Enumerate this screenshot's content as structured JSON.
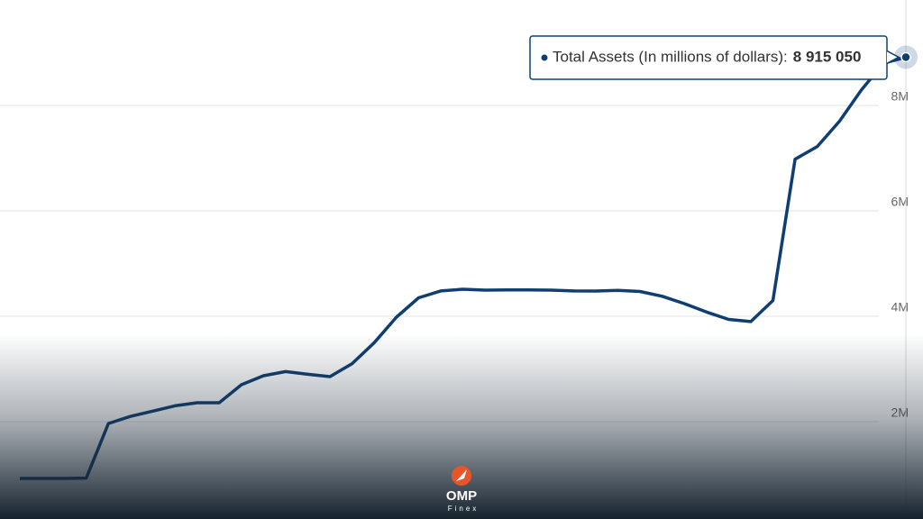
{
  "chart_data": {
    "type": "line",
    "series": [
      {
        "name": "Total Assets (In millions of dollars)",
        "color": "#0f3e72",
        "values": [
          923000,
          923000,
          923000,
          930000,
          1966000,
          2100000,
          2200000,
          2300000,
          2359000,
          2359000,
          2700000,
          2872000,
          2950000,
          2900000,
          2855000,
          3100000,
          3500000,
          3983000,
          4350000,
          4480000,
          4513000,
          4496000,
          4500000,
          4500000,
          4496000,
          4480000,
          4479000,
          4490000,
          4470000,
          4380000,
          4239000,
          4080000,
          3940000,
          3900000,
          4300000,
          6980000,
          7220000,
          7700000,
          8300000,
          8803000,
          8915050
        ]
      }
    ],
    "ylim": [
      0,
      10000000
    ],
    "yticks": [
      {
        "value": 2000000,
        "label": "2M"
      },
      {
        "value": 4000000,
        "label": "4M"
      },
      {
        "value": 6000000,
        "label": "6M"
      },
      {
        "value": 8000000,
        "label": "8M"
      }
    ],
    "grid": true,
    "tooltip": {
      "text": "Total Assets (In millions of dollars):",
      "value": 8915050,
      "value_label": "8 915 050"
    }
  },
  "watermark": {
    "title": "OMP",
    "subtitle": "Finex"
  }
}
